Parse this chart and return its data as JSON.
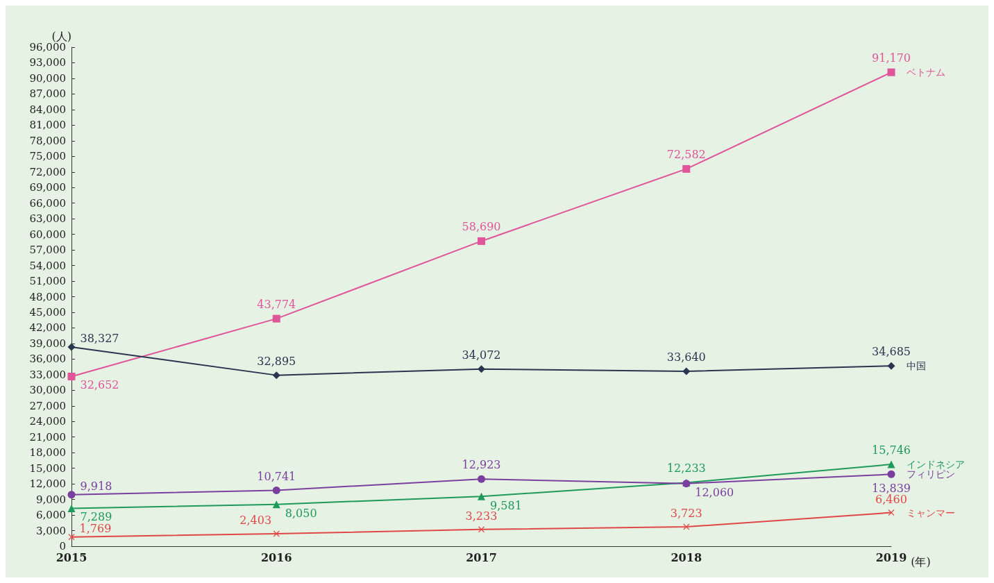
{
  "chart_data": {
    "type": "line",
    "categories": [
      "2015",
      "2016",
      "2017",
      "2018",
      "2019"
    ],
    "xlabel": "(年)",
    "ylabel": "(人)",
    "ylim": [
      0,
      96000
    ],
    "yticks": [
      0,
      {
        "value": 3000,
        "label": "3,000"
      },
      {
        "value": 6000,
        "label": "6,000"
      },
      {
        "value": 9000,
        "label": "9,000"
      },
      {
        "value": 12000,
        "label": "12,000"
      },
      {
        "value": 15000,
        "label": "15,000"
      },
      {
        "value": 18000,
        "label": "18,000"
      },
      {
        "value": 21000,
        "label": "21,000"
      },
      {
        "value": 24000,
        "label": "24,000"
      },
      {
        "value": 27000,
        "label": "27,000"
      },
      {
        "value": 30000,
        "label": "30,000"
      },
      {
        "value": 33000,
        "label": "33,000"
      },
      {
        "value": 36000,
        "label": "36,000"
      },
      {
        "value": 39000,
        "label": "39,000"
      },
      {
        "value": 42000,
        "label": "42,000"
      },
      {
        "value": 45000,
        "label": "45,000"
      },
      {
        "value": 48000,
        "label": "48,000"
      },
      {
        "value": 51000,
        "label": "51,000"
      },
      {
        "value": 54000,
        "label": "54,000"
      },
      {
        "value": 57000,
        "label": "57,000"
      },
      {
        "value": 60000,
        "label": "60,000"
      },
      {
        "value": 63000,
        "label": "63,000"
      },
      {
        "value": 66000,
        "label": "66,000"
      },
      {
        "value": 69000,
        "label": "69,000"
      },
      {
        "value": 72000,
        "label": "72,000"
      },
      {
        "value": 75000,
        "label": "75,000"
      },
      {
        "value": 78000,
        "label": "78,000"
      },
      {
        "value": 81000,
        "label": "81,000"
      },
      {
        "value": 84000,
        "label": "84,000"
      },
      {
        "value": 87000,
        "label": "87,000"
      },
      {
        "value": 90000,
        "label": "90,000"
      },
      {
        "value": 93000,
        "label": "93,000"
      },
      {
        "value": 96000,
        "label": "96,000"
      }
    ],
    "grid": false,
    "legend": false,
    "line_style": "solid",
    "series": [
      {
        "name": "ベトナム",
        "color": "#e0559a",
        "marker": "square",
        "values": [
          32652,
          43774,
          58690,
          72582,
          91170
        ],
        "value_labels": [
          "32,652",
          "43,774",
          "58,690",
          "72,582",
          "91,170"
        ]
      },
      {
        "name": "中国",
        "color": "#2a3550",
        "marker": "diamond",
        "values": [
          38327,
          32895,
          34072,
          33640,
          34685
        ],
        "value_labels": [
          "38,327",
          "32,895",
          "34,072",
          "33,640",
          "34,685"
        ]
      },
      {
        "name": "インドネシア",
        "color": "#1e9a5a",
        "marker": "triangle",
        "values": [
          7289,
          8050,
          9581,
          12233,
          15746
        ],
        "value_labels": [
          "7,289",
          "8,050",
          "9,581",
          "12,233",
          "15,746"
        ]
      },
      {
        "name": "フィリピン",
        "color": "#7b3fa0",
        "marker": "circle",
        "values": [
          9918,
          10741,
          12923,
          12060,
          13839
        ],
        "value_labels": [
          "9,918",
          "10,741",
          "12,923",
          "12,060",
          "13,839"
        ]
      },
      {
        "name": "ミャンマー",
        "color": "#e04848",
        "marker": "cross",
        "values": [
          1769,
          2403,
          3233,
          3723,
          6460
        ],
        "value_labels": [
          "1,769",
          "2,403",
          "3,233",
          "3,723",
          "6,460"
        ]
      }
    ]
  }
}
